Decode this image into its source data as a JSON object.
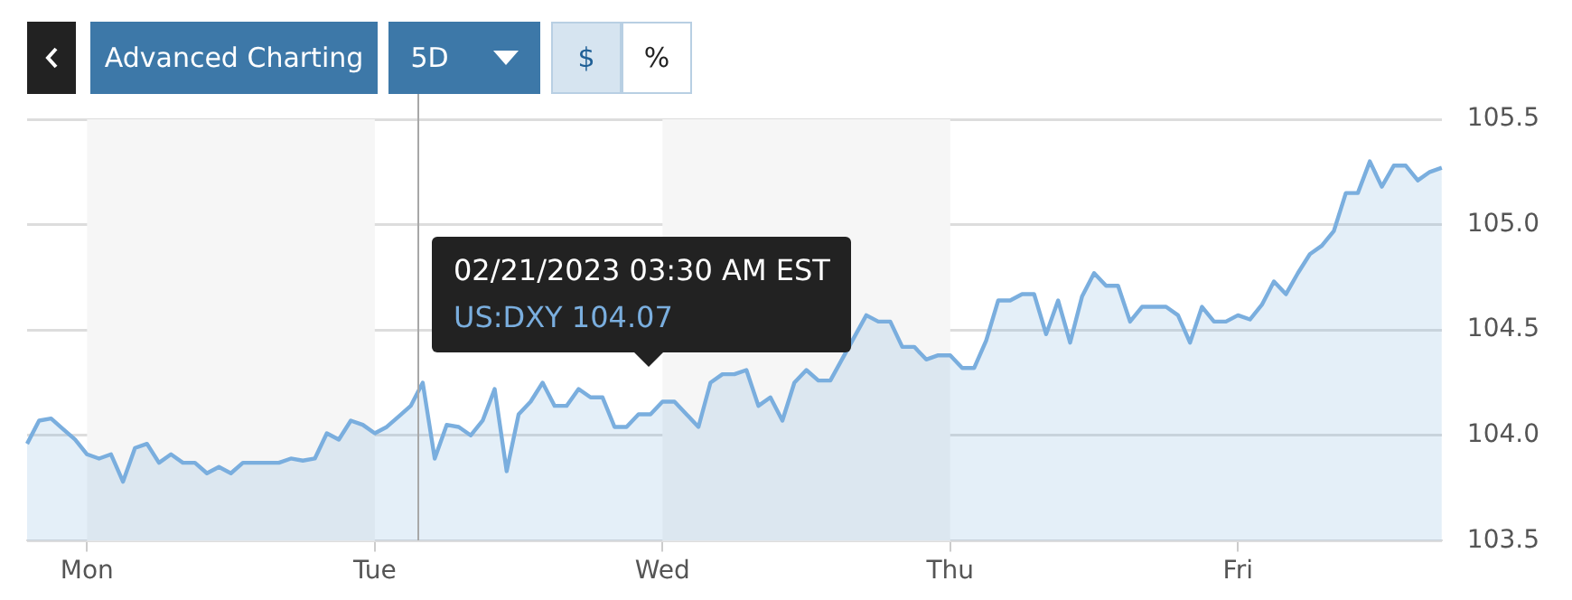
{
  "chart_data": {
    "type": "area",
    "annotations": [
      "Advanced Charting",
      "5D",
      "$",
      "%",
      "02/21/2023 03:30 AM EST",
      "US:DXY   104.07"
    ],
    "categories": [
      null,
      null,
      null,
      null,
      null,
      "Mon",
      null,
      null,
      null,
      null,
      null,
      null,
      null,
      null,
      null,
      null,
      null,
      null,
      null,
      null,
      null,
      null,
      null,
      null,
      null,
      null,
      null,
      null,
      null,
      "Tue",
      null,
      null,
      null,
      null,
      null,
      null,
      null,
      null,
      null,
      null,
      null,
      null,
      null,
      null,
      null,
      null,
      null,
      null,
      null,
      null,
      null,
      null,
      null,
      "Wed",
      null,
      null,
      null,
      null,
      null,
      null,
      null,
      null,
      null,
      null,
      null,
      null,
      null,
      null,
      null,
      null,
      null,
      null,
      null,
      null,
      null,
      null,
      null,
      "Thu",
      null,
      null,
      null,
      null,
      null,
      null,
      null,
      null,
      null,
      null,
      null,
      null,
      null,
      null,
      null,
      null,
      null,
      null,
      null,
      null,
      null,
      null,
      null,
      "Fri",
      null,
      null,
      null,
      null,
      null,
      null,
      null,
      null,
      null,
      null,
      null,
      null,
      null,
      null,
      null,
      null,
      null
    ],
    "series": [
      {
        "color": "#7aaede",
        "values": [
          103.96,
          104.07,
          104.08,
          104.03,
          103.98,
          103.91,
          103.89,
          103.91,
          103.78,
          103.94,
          103.96,
          103.87,
          103.91,
          103.87,
          103.87,
          103.82,
          103.85,
          103.82,
          103.87,
          103.87,
          103.87,
          103.87,
          103.89,
          103.88,
          103.89,
          104.01,
          103.98,
          104.07,
          104.05,
          104.01,
          104.04,
          104.09,
          104.14,
          104.25,
          103.89,
          104.05,
          104.04,
          104.0,
          104.07,
          104.22,
          103.83,
          104.1,
          104.16,
          104.25,
          104.14,
          104.14,
          104.22,
          104.18,
          104.18,
          104.04,
          104.04,
          104.1,
          104.1,
          104.16,
          104.16,
          104.1,
          104.04,
          104.25,
          104.29,
          104.29,
          104.31,
          104.14,
          104.18,
          104.07,
          104.25,
          104.31,
          104.26,
          104.26,
          null,
          null,
          104.57,
          104.54,
          104.54,
          104.42,
          104.42,
          104.36,
          104.38,
          104.38,
          104.32,
          104.32,
          104.45,
          104.64,
          104.64,
          104.67,
          104.67,
          104.48,
          104.64,
          104.44,
          104.66,
          104.77,
          104.71,
          104.71,
          104.54,
          104.61,
          104.61,
          104.61,
          104.57,
          104.44,
          104.61,
          104.54,
          104.54,
          104.57,
          104.55,
          104.62,
          104.73,
          104.67,
          104.77,
          104.86,
          104.9,
          104.97,
          105.15,
          105.15,
          105.3,
          105.18,
          105.28,
          105.28,
          105.21,
          105.25,
          105.27
        ]
      }
    ],
    "ylim": [
      103.5,
      105.5
    ],
    "yticks": [
      {
        "value": 103.5,
        "label": "103.5"
      },
      {
        "value": 104,
        "label": "104.0"
      },
      {
        "value": 104.5,
        "label": "104.5"
      },
      {
        "value": 105,
        "label": "105.0"
      },
      {
        "value": 105.5,
        "label": "105.5"
      }
    ],
    "bands": [
      {
        "axis": "x",
        "from": "Mon",
        "to": "Tue",
        "color": "#f6f6f6"
      },
      {
        "axis": "x",
        "from": "Wed",
        "to": "Thu",
        "color": "#f6f6f6"
      }
    ],
    "grid": "y"
  }
}
